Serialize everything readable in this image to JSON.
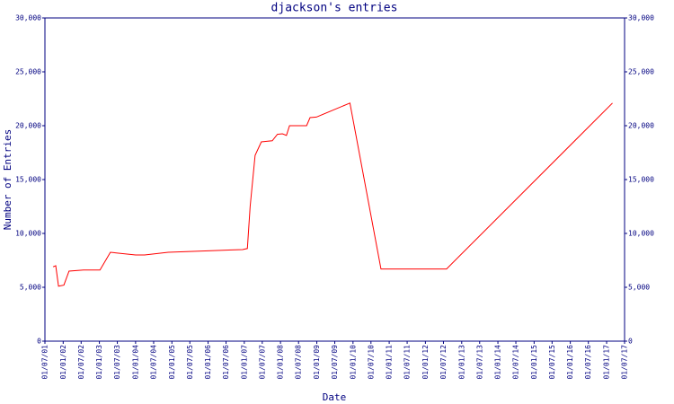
{
  "chart_data": {
    "type": "line",
    "title": "djackson's entries",
    "x_label": "Date",
    "y_label": "Number of Entries",
    "date_format": "DD/MM/YY",
    "x": [
      "21/09/01",
      "18/10/01",
      "15/11/01",
      "08/01/02",
      "01/03/02",
      "25/07/02",
      "07/01/03",
      "22/04/03",
      "01/01/04",
      "01/04/04",
      "25/11/04",
      "01/02/06",
      "15/12/06",
      "01/02/07",
      "01/03/07",
      "20/04/07",
      "22/06/07",
      "10/10/07",
      "01/12/07",
      "20/01/08",
      "01/03/08",
      "01/04/08",
      "20/09/08",
      "25/10/08",
      "28/12/08",
      "01/12/09",
      "10/10/10",
      "01/08/12",
      "01/03/17"
    ],
    "series": [
      {
        "name": "entries",
        "color": "#ff0000",
        "values": [
          6900,
          7000,
          5100,
          5200,
          6500,
          6600,
          6600,
          8250,
          8000,
          8000,
          8250,
          8400,
          8500,
          8600,
          12500,
          17250,
          18500,
          18600,
          19200,
          19250,
          19100,
          20000,
          20000,
          20750,
          20800,
          22100,
          6700,
          6700,
          22100
        ]
      }
    ],
    "xlim": [
      "01/07/01",
      "01/07/17"
    ],
    "xticks": [
      "01/07/01",
      "01/01/02",
      "01/07/02",
      "01/01/03",
      "01/07/03",
      "01/01/04",
      "01/07/04",
      "01/01/05",
      "01/07/05",
      "01/01/06",
      "01/07/06",
      "01/01/07",
      "01/07/07",
      "01/01/08",
      "01/07/08",
      "01/01/09",
      "01/07/09",
      "01/01/10",
      "01/07/10",
      "01/01/11",
      "01/07/11",
      "01/01/12",
      "01/07/12",
      "01/01/13",
      "01/07/13",
      "01/01/14",
      "01/07/14",
      "01/01/15",
      "01/07/15",
      "01/01/16",
      "01/07/16",
      "01/01/17",
      "01/07/17"
    ],
    "ylim": [
      0,
      30000
    ],
    "yticks": [
      0,
      {
        "value": 5000,
        "label": "5,000"
      },
      {
        "value": 10000,
        "label": "10,000"
      },
      {
        "value": 15000,
        "label": "15,000"
      },
      {
        "value": 20000,
        "label": "20,000"
      },
      {
        "value": 25000,
        "label": "25,000"
      },
      {
        "value": 30000,
        "label": "30,000"
      }
    ],
    "right_axis": true
  }
}
